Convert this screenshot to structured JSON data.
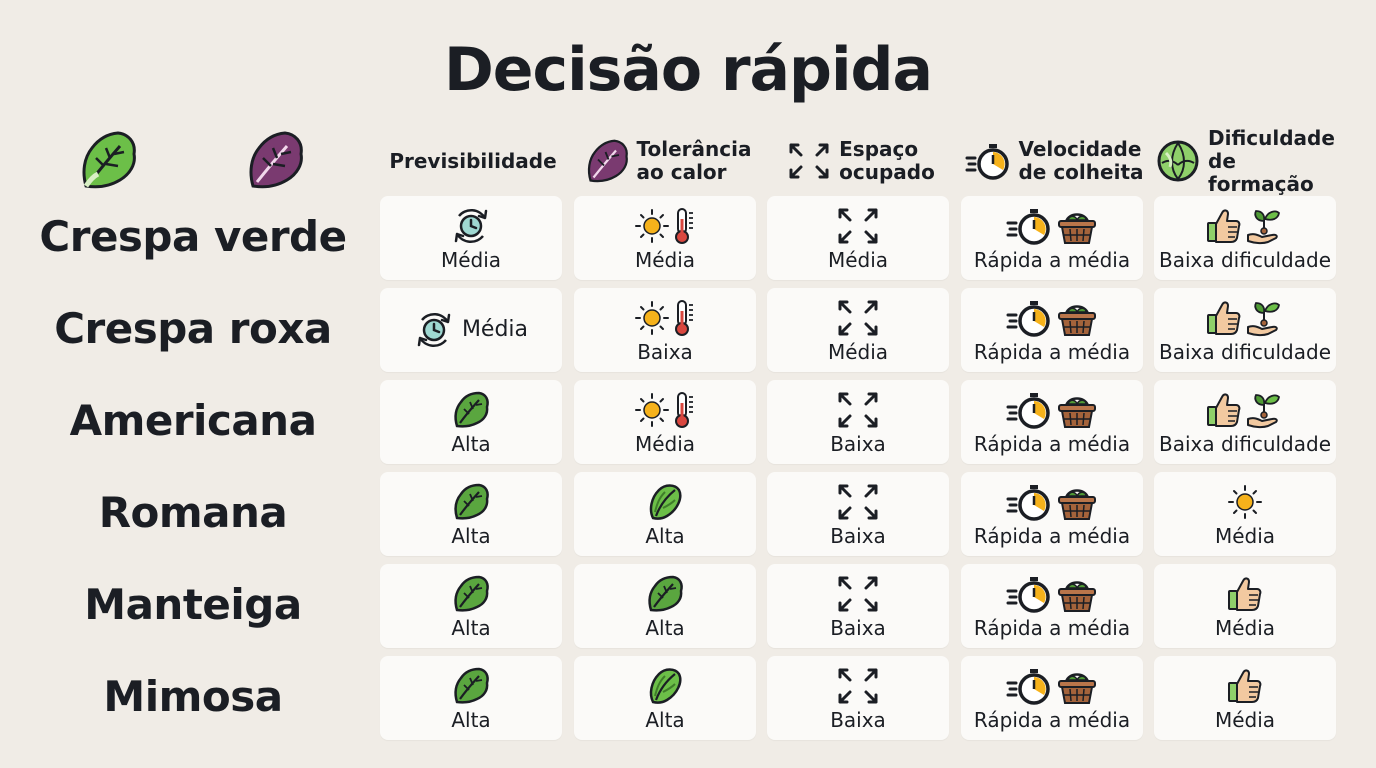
{
  "title": "Decisão rápida",
  "columns": [
    {
      "label": "Previsibilidade",
      "icon": "none"
    },
    {
      "label": "Tolerância\nao calor",
      "icon": "purple-lettuce-icon"
    },
    {
      "label": "Espaço\nocupado",
      "icon": "expand-arrows-icon"
    },
    {
      "label": "Velocidade\nde colheita",
      "icon": "stopwatch-icon"
    },
    {
      "label": "Dificuldade\nde formação",
      "icon": "cabbage-icon"
    }
  ],
  "rows": [
    {
      "label": "Crespa verde",
      "cells": [
        {
          "text": "Média",
          "icons": [
            "cycle-clock-icon"
          ]
        },
        {
          "text": "Média",
          "icons": [
            "sun-icon",
            "thermometer-icon"
          ]
        },
        {
          "text": "Média",
          "icons": [
            "expand-arrows-icon"
          ]
        },
        {
          "text": "Rápida a média",
          "icons": [
            "stopwatch-icon",
            "basket-icon"
          ]
        },
        {
          "text": "Baixa dificuldade",
          "icons": [
            "thumbs-up-icon",
            "sprout-hand-icon"
          ]
        }
      ]
    },
    {
      "label": "Crespa roxa",
      "cells": [
        {
          "text": "Média",
          "icons": [
            "cycle-clock-icon"
          ],
          "inline": true
        },
        {
          "text": "Baixa",
          "icons": [
            "sun-icon",
            "thermometer-icon"
          ]
        },
        {
          "text": "Média",
          "icons": [
            "expand-arrows-icon"
          ]
        },
        {
          "text": "Rápida a média",
          "icons": [
            "stopwatch-icon",
            "basket-icon"
          ]
        },
        {
          "text": "Baixa dificuldade",
          "icons": [
            "thumbs-up-icon",
            "sprout-hand-icon"
          ]
        }
      ]
    },
    {
      "label": "Americana",
      "cells": [
        {
          "text": "Alta",
          "icons": [
            "lettuce-leaf-icon"
          ]
        },
        {
          "text": "Média",
          "icons": [
            "sun-icon",
            "thermometer-icon"
          ]
        },
        {
          "text": "Baixa",
          "icons": [
            "expand-arrows-icon"
          ]
        },
        {
          "text": "Rápida a média",
          "icons": [
            "stopwatch-icon",
            "basket-icon"
          ]
        },
        {
          "text": "Baixa dificuldade",
          "icons": [
            "thumbs-up-icon",
            "sprout-hand-icon"
          ]
        }
      ]
    },
    {
      "label": "Romana",
      "cells": [
        {
          "text": "Alta",
          "icons": [
            "lettuce-leaf-icon"
          ]
        },
        {
          "text": "Alta",
          "icons": [
            "romaine-icon"
          ]
        },
        {
          "text": "Baixa",
          "icons": [
            "expand-arrows-icon"
          ]
        },
        {
          "text": "Rápida a média",
          "icons": [
            "stopwatch-icon",
            "basket-icon"
          ]
        },
        {
          "text": "Média",
          "icons": [
            "sun-icon"
          ]
        }
      ]
    },
    {
      "label": "Manteiga",
      "cells": [
        {
          "text": "Alta",
          "icons": [
            "lettuce-leaf-icon"
          ]
        },
        {
          "text": "Alta",
          "icons": [
            "lettuce-leaf-icon"
          ]
        },
        {
          "text": "Baixa",
          "icons": [
            "expand-arrows-icon"
          ]
        },
        {
          "text": "Rápida a média",
          "icons": [
            "stopwatch-icon",
            "basket-icon"
          ]
        },
        {
          "text": "Média",
          "icons": [
            "thumbs-up-icon"
          ]
        }
      ]
    },
    {
      "label": "Mimosa",
      "cells": [
        {
          "text": "Alta",
          "icons": [
            "lettuce-leaf-icon"
          ]
        },
        {
          "text": "Alta",
          "icons": [
            "romaine-icon"
          ]
        },
        {
          "text": "Baixa",
          "icons": [
            "expand-arrows-icon"
          ]
        },
        {
          "text": "Rápida a média",
          "icons": [
            "stopwatch-icon",
            "basket-icon"
          ]
        },
        {
          "text": "Média",
          "icons": [
            "thumbs-up-icon"
          ]
        }
      ]
    }
  ],
  "colors": {
    "background": "#f0ece6",
    "cell": "#fbfaf8",
    "text": "#1b1e24",
    "green": "#5aa63f",
    "purple": "#7a3a70",
    "sun": "#f6b21b",
    "thermometer": "#d9473f",
    "basket": "#a4633b"
  }
}
